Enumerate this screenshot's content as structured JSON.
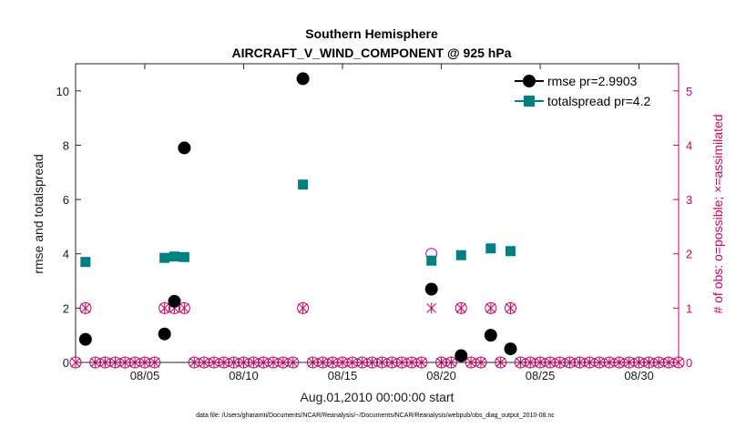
{
  "chart_data": {
    "type": "scatter",
    "title": "Southern Hemisphere",
    "subtitle": "AIRCRAFT_V_WIND_COMPONENT @ 925 hPa",
    "xlabel": "Aug.01,2010 00:00:00 start",
    "ylabel": "rmse and totalspread",
    "y2label": "# of obs: o=possible; ×=assimilated",
    "xlim": [
      1.5,
      32
    ],
    "ylim": [
      0,
      11
    ],
    "y2lim": [
      0,
      5.5
    ],
    "x_ticks": [
      5,
      10,
      15,
      20,
      25,
      30
    ],
    "x_tick_labels": [
      "08/05",
      "08/10",
      "08/15",
      "08/20",
      "08/25",
      "08/30"
    ],
    "y_ticks": [
      0,
      2,
      4,
      6,
      8,
      10
    ],
    "y_tick_labels": [
      "0",
      "2",
      "4",
      "6",
      "8",
      "10"
    ],
    "y2_ticks": [
      0,
      1,
      2,
      3,
      4,
      5
    ],
    "y2_tick_labels": [
      "0",
      "1",
      "2",
      "3",
      "4",
      "5"
    ],
    "series": [
      {
        "name": "rmse",
        "legend_label": "rmse pr=2.9903",
        "color": "#000000",
        "marker": "circle",
        "axis": "left",
        "points": [
          [
            2.0,
            0.85
          ],
          [
            6.0,
            1.05
          ],
          [
            6.5,
            2.25
          ],
          [
            7.0,
            7.9
          ],
          [
            13.0,
            10.45
          ],
          [
            19.5,
            2.7
          ],
          [
            21.0,
            0.25
          ],
          [
            22.5,
            1.0
          ],
          [
            23.5,
            0.5
          ]
        ]
      },
      {
        "name": "totalspread",
        "legend_label": "totalspread pr=4.2",
        "color": "#008080",
        "marker": "square",
        "axis": "left",
        "points": [
          [
            2.0,
            3.7
          ],
          [
            6.0,
            3.85
          ],
          [
            6.5,
            3.9
          ],
          [
            7.0,
            3.88
          ],
          [
            13.0,
            6.55
          ],
          [
            19.5,
            3.75
          ],
          [
            21.0,
            3.95
          ],
          [
            22.5,
            4.2
          ],
          [
            23.5,
            4.1
          ]
        ]
      },
      {
        "name": "obs_possible",
        "color": "#cc0066",
        "marker": "circle-open",
        "axis": "right",
        "points": [
          [
            2.0,
            1
          ],
          [
            6.0,
            1
          ],
          [
            6.5,
            1
          ],
          [
            7.0,
            1
          ],
          [
            13.0,
            1
          ],
          [
            19.5,
            2
          ],
          [
            21.0,
            1
          ],
          [
            22.5,
            1
          ],
          [
            23.5,
            1
          ]
        ]
      },
      {
        "name": "obs_assimilated",
        "color": "#cc0066",
        "marker": "x",
        "axis": "right",
        "points": [
          [
            2.0,
            1
          ],
          [
            6.0,
            1
          ],
          [
            6.5,
            1
          ],
          [
            7.0,
            1
          ],
          [
            13.0,
            1
          ],
          [
            19.5,
            1
          ],
          [
            21.0,
            1
          ],
          [
            22.5,
            1
          ],
          [
            23.5,
            1
          ]
        ]
      }
    ],
    "zero_obs_x_start": 1.5,
    "zero_obs_x_end": 32.0,
    "zero_obs_step": 0.5,
    "grid": false,
    "legend_position": "top-right"
  },
  "footer": {
    "data_file": "data file: /Users/gharamti/Documents/NCAR/Reanalysis/~/Documents/NCAR/Reanalysis/webpub/obs_diag_output_2010-08.nc"
  }
}
